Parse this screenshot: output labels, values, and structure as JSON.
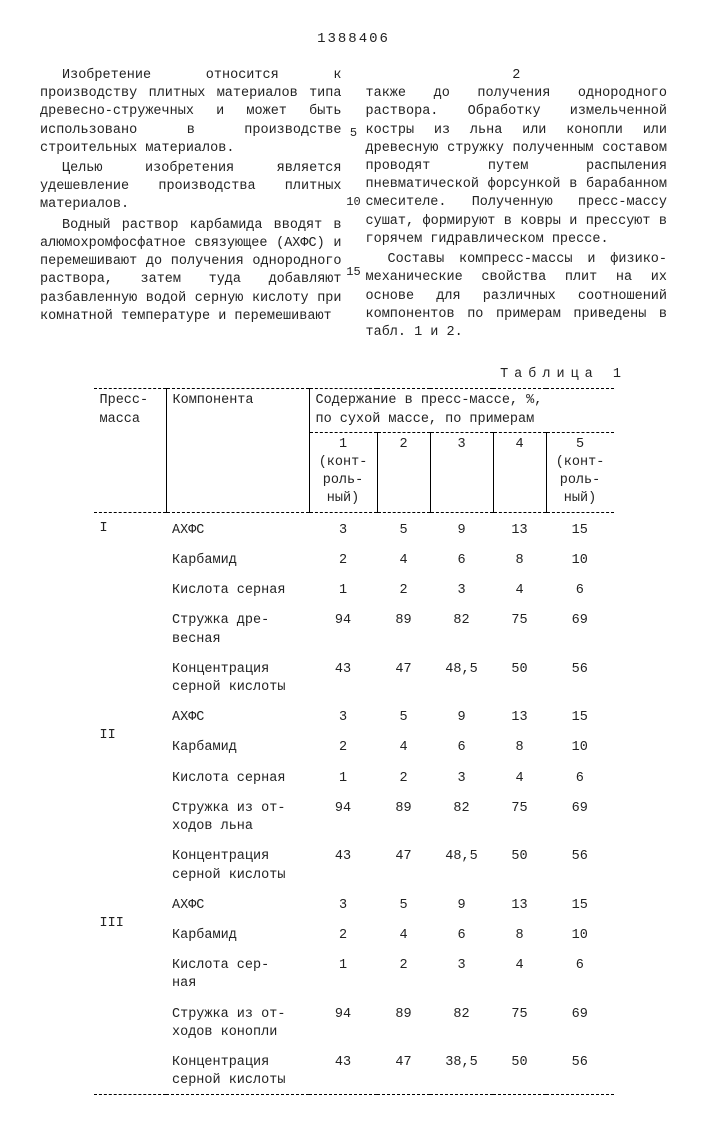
{
  "page_number": "1388406",
  "col_left": {
    "p1": "Изобретение относится к производству плитных материалов типа древесно-стружечных и может быть использовано в производстве строительных материалов.",
    "p2": "Целью изобретения является удешевление производства плитных материалов.",
    "p3": "Водный раствор карбамида вводят в алюмохромфосфатное связующее (АХФС) и перемешивают до получения однородного раствора, затем туда добавляют разбавленную водой серную кислоту при комнатной температуре и перемешивают"
  },
  "col_right": {
    "p1": "также до получения однородного раствора. Обработку измельченной костры из льна или конопли или древесную стружку полученным составом проводят путем распыления пневматической форсункой в барабанном смесителе. Полученную пресс-массу сушат, формируют в ковры и прессуют в горячем гидравлическом прессе.",
    "p2": "Составы компресс-массы и физико-механические свойства плит на их основе для различных соотношений компонентов по примерам приведены в табл. 1 и 2."
  },
  "col_side_2": "2",
  "line_markers": {
    "m5": "5",
    "m10": "10",
    "m15": "15"
  },
  "table_caption": "Таблица 1",
  "thead": {
    "c1": "Пресс-\nмасса",
    "c2": "Компонента",
    "c3": "Содержание в пресс-массе, %,\nпо сухой массе, по примерам",
    "n1": "1\n(конт-\nроль-\nный)",
    "n2": "2",
    "n3": "3",
    "n4": "4",
    "n5": "5\n(конт-\nроль-\nный)"
  },
  "groups": [
    {
      "label": "I",
      "rows": [
        {
          "name": "АХФС",
          "v": [
            "3",
            "5",
            "9",
            "13",
            "15"
          ]
        },
        {
          "name": "Карбамид",
          "v": [
            "2",
            "4",
            "6",
            "8",
            "10"
          ]
        },
        {
          "name": "Кислота серная",
          "v": [
            "1",
            "2",
            "3",
            "4",
            "6"
          ]
        },
        {
          "name": "Стружка дре-\nвесная",
          "v": [
            "94",
            "89",
            "82",
            "75",
            "69"
          ]
        },
        {
          "name": "Концентрация\nсерной кислоты",
          "v": [
            "43",
            "47",
            "48,5",
            "50",
            "56"
          ]
        }
      ]
    },
    {
      "label": "II",
      "rows": [
        {
          "name": "АХФС",
          "v": [
            "3",
            "5",
            "9",
            "13",
            "15"
          ]
        },
        {
          "name": "Карбамид",
          "v": [
            "2",
            "4",
            "6",
            "8",
            "10"
          ]
        },
        {
          "name": "Кислота серная",
          "v": [
            "1",
            "2",
            "3",
            "4",
            "6"
          ]
        },
        {
          "name": "Стружка из от-\nходов льна",
          "v": [
            "94",
            "89",
            "82",
            "75",
            "69"
          ]
        },
        {
          "name": "Концентрация\nсерной кислоты",
          "v": [
            "43",
            "47",
            "48,5",
            "50",
            "56"
          ]
        }
      ]
    },
    {
      "label": "III",
      "rows": [
        {
          "name": "АХФС",
          "v": [
            "3",
            "5",
            "9",
            "13",
            "15"
          ]
        },
        {
          "name": "Карбамид",
          "v": [
            "2",
            "4",
            "6",
            "8",
            "10"
          ]
        },
        {
          "name": "Кислота сер-\nная",
          "v": [
            "1",
            "2",
            "3",
            "4",
            "6"
          ]
        },
        {
          "name": "Стружка из от-\nходов конопли",
          "v": [
            "94",
            "89",
            "82",
            "75",
            "69"
          ]
        },
        {
          "name": "Концентрация\nсерной кислоты",
          "v": [
            "43",
            "47",
            "38,5",
            "50",
            "56"
          ]
        }
      ]
    }
  ]
}
